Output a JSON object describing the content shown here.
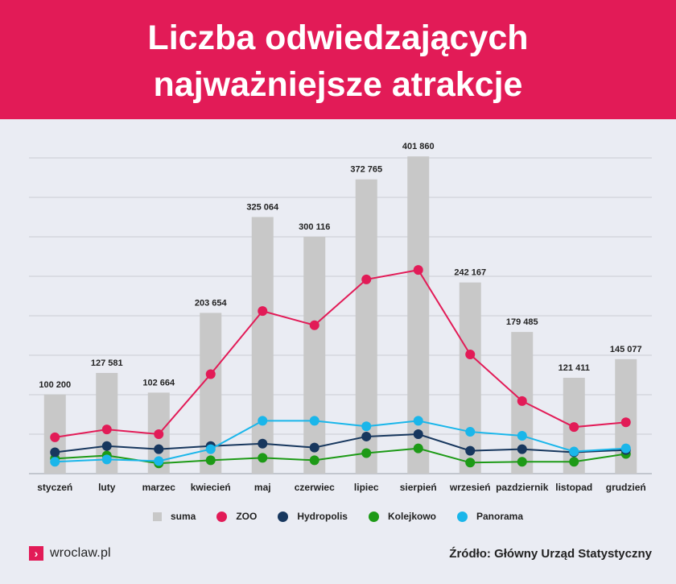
{
  "header": {
    "title_line1": "Liczba odwiedzających",
    "title_line2": "najważniejsze atrakcje",
    "background": "#e21b57"
  },
  "chart_data": {
    "type": "bar",
    "categories": [
      "styczeń",
      "luty",
      "marzec",
      "kwiecień",
      "maj",
      "czerwiec",
      "lipiec",
      "sierpień",
      "wrzesień",
      "pazdziernik",
      "listopad",
      "grudzień"
    ],
    "bar_series": {
      "name": "suma",
      "color": "#c8c8c8",
      "values": [
        100200,
        127581,
        102664,
        203654,
        325064,
        300116,
        372765,
        401860,
        242167,
        179485,
        121411,
        145077
      ],
      "labels": [
        "100 200",
        "127 581",
        "102 664",
        "203 654",
        "325 064",
        "300 116",
        "372 765",
        "401 860",
        "242 167",
        "179 485",
        "121 411",
        "145 077"
      ]
    },
    "line_series": [
      {
        "name": "ZOO",
        "color": "#e21b57",
        "values": [
          46000,
          56000,
          50000,
          126000,
          206000,
          188000,
          246000,
          258000,
          151000,
          92000,
          59000,
          65000
        ]
      },
      {
        "name": "Hydropolis",
        "color": "#17375e",
        "values": [
          27000,
          35000,
          31000,
          35000,
          38000,
          33000,
          47000,
          50000,
          29000,
          31000,
          27000,
          30000
        ]
      },
      {
        "name": "Kolejkowo",
        "color": "#1d9a16",
        "values": [
          19000,
          23000,
          13000,
          17000,
          20000,
          17000,
          26000,
          32000,
          14000,
          15000,
          15000,
          25000
        ]
      },
      {
        "name": "Panorama",
        "color": "#1ab6ea",
        "values": [
          15000,
          18000,
          16000,
          31000,
          67000,
          67000,
          60000,
          67000,
          53000,
          48000,
          28000,
          32000
        ]
      }
    ],
    "ylim": [
      0,
      400000
    ],
    "grid": true,
    "legend_placement": "bottom"
  },
  "footer": {
    "logo_text": "wroclaw.pl",
    "logo_glyph": "›",
    "source": "Źródło: Główny Urząd Statystyczny"
  }
}
